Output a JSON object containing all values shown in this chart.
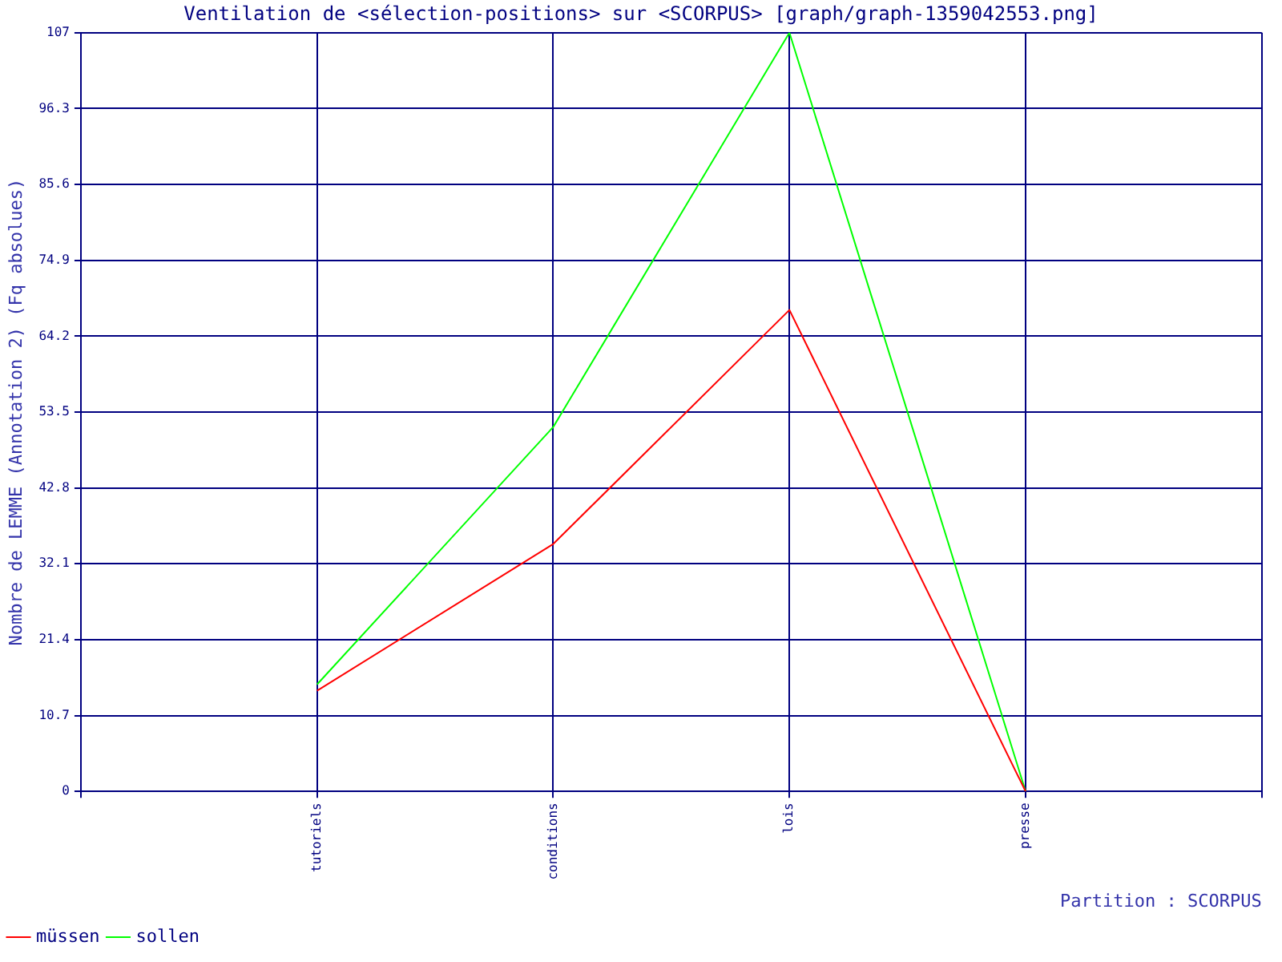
{
  "chart_data": {
    "type": "line",
    "title": "Ventilation de <sélection-positions> sur <SCORPUS> [graph/graph-1359042553.png]",
    "xlabel": "Partition : SCORPUS",
    "ylabel": "Nombre de LEMME (Annotation 2) (Fq absolues)",
    "categories": [
      null,
      "tutoriels",
      "conditions",
      "lois",
      "presse",
      null
    ],
    "series": [
      {
        "name": "müssen",
        "color": "#ff0000",
        "values": [
          null,
          14.2,
          34.9,
          67.9,
          0,
          null
        ]
      },
      {
        "name": "sollen",
        "color": "#00ff00",
        "values": [
          null,
          15.1,
          51.4,
          107,
          0,
          null
        ]
      }
    ],
    "ylim": [
      0,
      107
    ],
    "yticks": [
      0,
      10.7,
      21.4,
      32.1,
      42.8,
      53.5,
      64.2,
      74.9,
      85.6,
      96.3,
      107
    ],
    "grid": true,
    "legend": "bottom left",
    "marker": "none",
    "line_style": "solid"
  }
}
